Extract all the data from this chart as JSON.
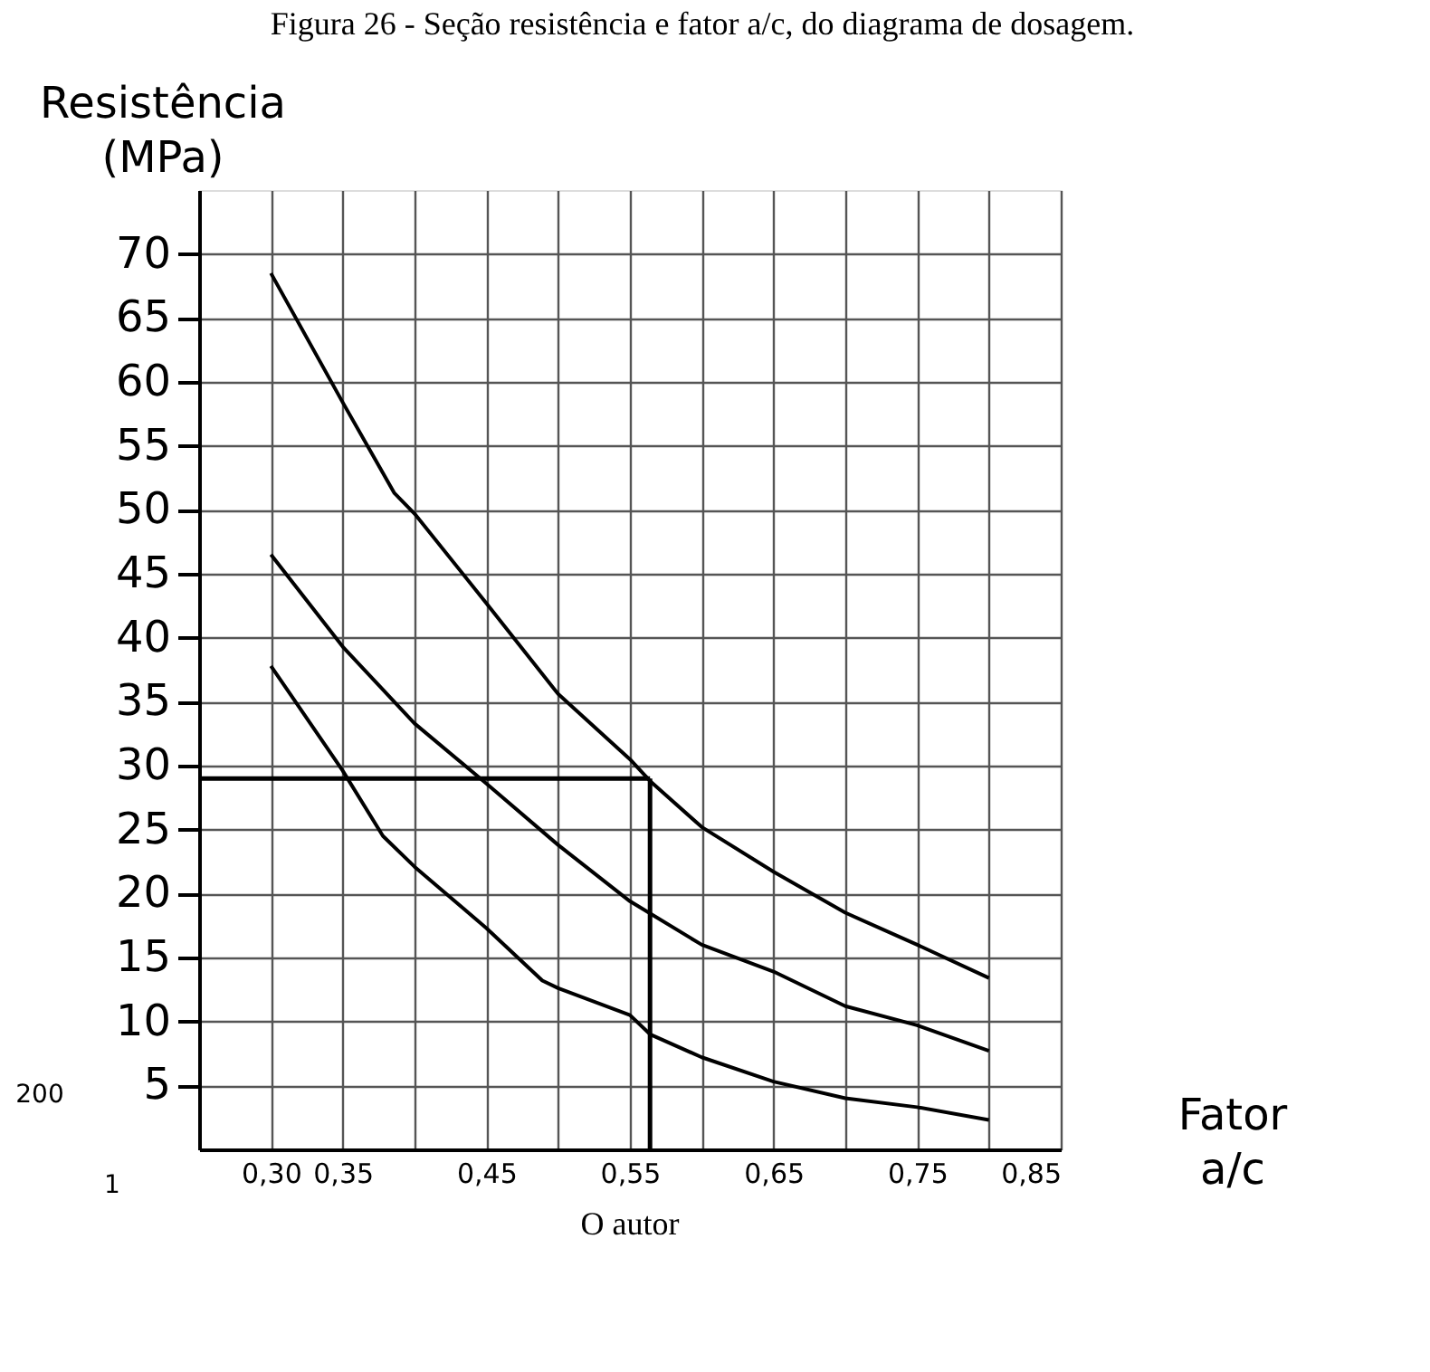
{
  "chart_data": {
    "type": "line",
    "title": "Figura 26 - Seção resistência e fator a/c, do diagrama de dosagem.",
    "ylabel": "Resistência (MPa)",
    "xlabel": "Fator a/c",
    "annotations": [
      "O autor",
      "200",
      "1"
    ],
    "xlim": [
      0.25,
      0.85
    ],
    "xticks": [
      {
        "value": 0.3,
        "label": "0,30"
      },
      {
        "value": 0.35,
        "label": "0,35"
      },
      {
        "value": 0.4,
        "label": null
      },
      {
        "value": 0.45,
        "label": "0,45"
      },
      {
        "value": 0.5,
        "label": null
      },
      {
        "value": 0.55,
        "label": "0,55"
      },
      {
        "value": 0.6,
        "label": null
      },
      {
        "value": 0.65,
        "label": "0,65"
      },
      {
        "value": 0.7,
        "label": null
      },
      {
        "value": 0.75,
        "label": "0,75"
      },
      {
        "value": 0.8,
        "label": null
      },
      {
        "value": 0.85,
        "label": "0,85"
      }
    ],
    "ylim": [
      0,
      75
    ],
    "yticks": [
      5,
      10,
      15,
      20,
      25,
      30,
      35,
      40,
      45,
      50,
      55,
      60,
      65,
      70
    ],
    "grid": true,
    "legend": false,
    "marker": "none",
    "line_style": "solid",
    "series": [
      {
        "color": "#000000",
        "x": [
          0.3,
          0.35,
          0.386,
          0.4,
          0.45,
          0.5,
          0.55,
          0.564,
          0.6,
          0.65,
          0.7,
          0.75,
          0.8
        ],
        "values": [
          68.5,
          58.4,
          51.3,
          49.7,
          42.7,
          35.6,
          30.5,
          28.8,
          25.2,
          21.7,
          18.5,
          16.0,
          13.4
        ]
      },
      {
        "color": "#000000",
        "x": [
          0.3,
          0.35,
          0.4,
          0.45,
          0.5,
          0.55,
          0.6,
          0.65,
          0.7,
          0.75,
          0.8
        ],
        "values": [
          46.5,
          39.3,
          33.3,
          28.6,
          23.8,
          19.4,
          16.0,
          13.9,
          11.2,
          9.7,
          7.7
        ]
      },
      {
        "color": "#000000",
        "x": [
          0.3,
          0.35,
          0.378,
          0.4,
          0.45,
          0.489,
          0.5,
          0.55,
          0.564,
          0.6,
          0.65,
          0.7,
          0.75,
          0.8
        ],
        "values": [
          37.8,
          29.6,
          24.5,
          22.1,
          17.3,
          13.2,
          12.6,
          10.5,
          9.0,
          7.2,
          5.3,
          4.0,
          3.3,
          2.3
        ]
      }
    ],
    "ref_lines": [
      {
        "axis": "y",
        "value": 29,
        "color": "#000000"
      },
      {
        "axis": "x",
        "value": 0.564,
        "color": "#000000"
      }
    ]
  }
}
